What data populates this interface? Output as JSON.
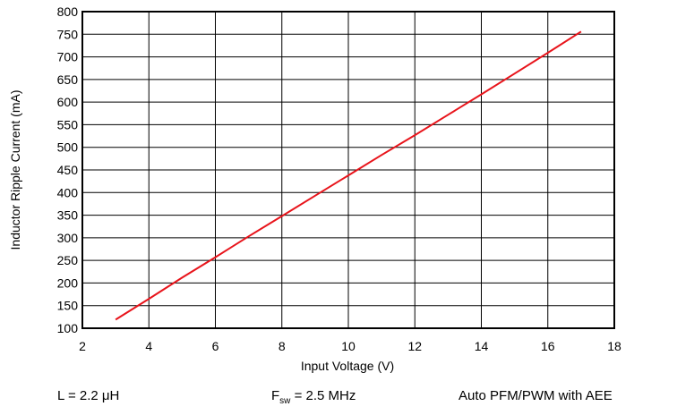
{
  "chart_data": {
    "type": "line",
    "title": "",
    "xlabel": "Input Voltage (V)",
    "ylabel": "Inductor Ripple Current (mA)",
    "xlim": [
      2,
      18
    ],
    "ylim": [
      100,
      800
    ],
    "x_ticks": [
      2,
      4,
      6,
      8,
      10,
      12,
      14,
      16,
      18
    ],
    "y_ticks": [
      100,
      150,
      200,
      250,
      300,
      350,
      400,
      450,
      500,
      550,
      600,
      650,
      700,
      750,
      800
    ],
    "grid": true,
    "series": [
      {
        "color": "#e8141b",
        "x": [
          3,
          4,
          5,
          6,
          7,
          8,
          9,
          10,
          11,
          12,
          13,
          14,
          15,
          16,
          17
        ],
        "y": [
          119,
          165,
          212,
          257,
          303,
          348,
          393,
          438,
          483,
          527,
          572,
          617,
          663,
          709,
          756
        ]
      }
    ]
  },
  "conditions": {
    "inductance": "L = 2.2 μH",
    "fsw_symbol": "F",
    "fsw_sub": "sw",
    "fsw_value": " = 2.5 MHz",
    "mode": "Auto PFM/PWM with AEE"
  },
  "colors": {
    "grid": "#000000",
    "line": "#e8141b"
  }
}
